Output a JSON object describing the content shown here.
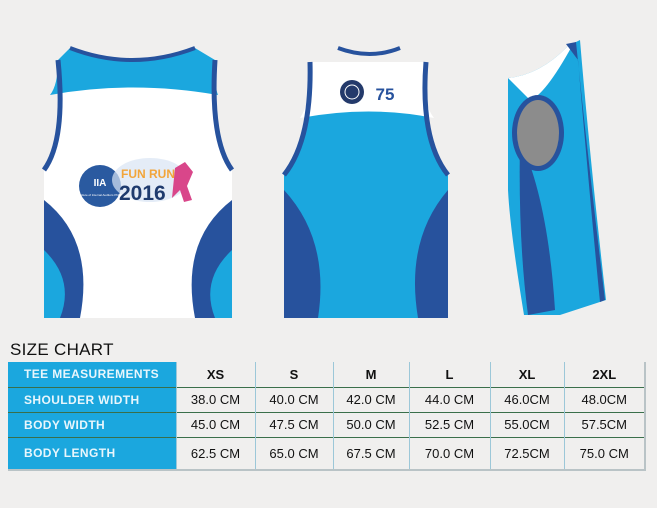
{
  "title": "SIZE CHART",
  "colors": {
    "light_blue": "#1ba7de",
    "dark_blue": "#27529d",
    "background": "#f0efee"
  },
  "front_logo": {
    "org": "The Institute of Internal Auditors Philippines",
    "initials": "IIA",
    "event_line1_a": "FUN",
    "event_line1_b": "RUN",
    "year": "2016"
  },
  "back_logo": {
    "number": "75"
  },
  "table": {
    "header": [
      "TEE MEASUREMENTS",
      "XS",
      "S",
      "M",
      "L",
      "XL",
      "2XL"
    ],
    "rows": [
      {
        "label": "SHOULDER WIDTH",
        "values": [
          "38.0 CM",
          "40.0 CM",
          "42.0 CM",
          "44.0 CM",
          "46.0CM",
          "48.0CM"
        ]
      },
      {
        "label": "BODY WIDTH",
        "values": [
          "45.0 CM",
          "47.5 CM",
          "50.0 CM",
          "52.5 CM",
          "55.0CM",
          "57.5CM"
        ]
      },
      {
        "label": "BODY LENGTH",
        "values": [
          "62.5 CM",
          "65.0 CM",
          "67.5 CM",
          "70.0 CM",
          "72.5CM",
          "75.0 CM"
        ]
      }
    ]
  }
}
